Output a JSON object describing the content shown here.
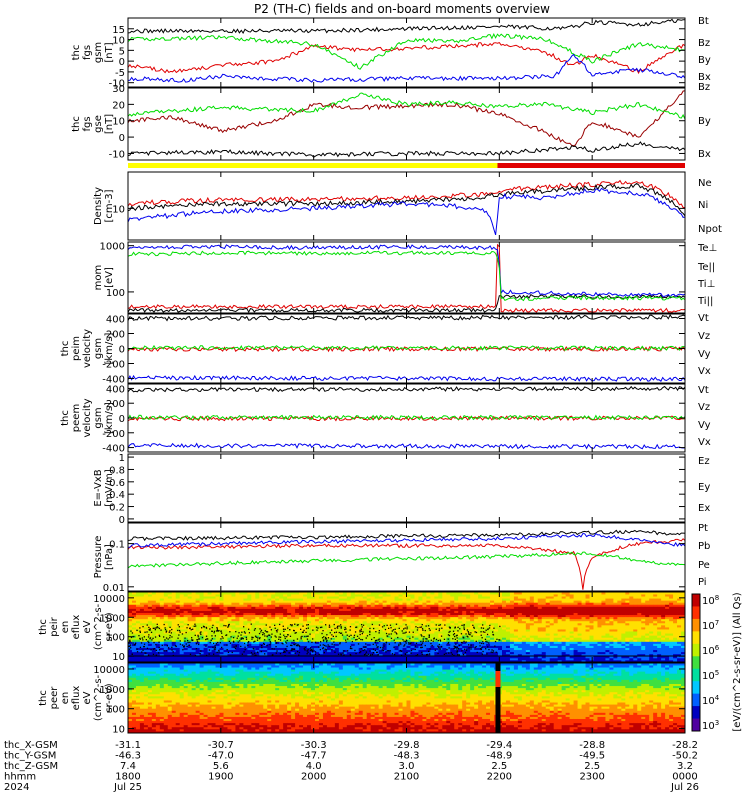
{
  "title": "P2 (TH-C) fields and on-board moments overview",
  "colors": {
    "black": "#000000",
    "red": "#e00000",
    "darkred": "#990000",
    "green": "#00dd00",
    "blue": "#0000ee",
    "yellow": "#ffff00"
  },
  "chart_data": [
    {
      "type": "line",
      "id": "fgs_gsm",
      "ylabel": [
        "thc",
        "fgs",
        "gsm",
        "[nT]"
      ],
      "ylim": [
        -12,
        20
      ],
      "yticks": [
        -10,
        -5,
        0,
        5,
        10,
        15
      ],
      "x_hours": [
        0,
        6
      ],
      "series": [
        {
          "name": "Bt",
          "color": "black",
          "points": [
            [
              0,
              14
            ],
            [
              1,
              14
            ],
            [
              2,
              14
            ],
            [
              3,
              15
            ],
            [
              4,
              16
            ],
            [
              4.7,
              15
            ],
            [
              5,
              18
            ],
            [
              5.5,
              17
            ],
            [
              6,
              19
            ]
          ]
        },
        {
          "name": "Bz",
          "color": "red",
          "points": [
            [
              0,
              -2
            ],
            [
              0.5,
              -5
            ],
            [
              1,
              -2
            ],
            [
              1.6,
              0
            ],
            [
              2,
              7
            ],
            [
              2.5,
              5
            ],
            [
              3,
              6
            ],
            [
              3.5,
              7
            ],
            [
              4,
              8
            ],
            [
              4.5,
              4
            ],
            [
              4.8,
              -2
            ],
            [
              5,
              3
            ],
            [
              5.5,
              -5
            ],
            [
              6,
              8
            ]
          ]
        },
        {
          "name": "By",
          "color": "green",
          "points": [
            [
              0,
              10
            ],
            [
              1,
              11
            ],
            [
              2,
              8
            ],
            [
              2.5,
              -3
            ],
            [
              3,
              10
            ],
            [
              3.5,
              9
            ],
            [
              4,
              12
            ],
            [
              4.5,
              10
            ],
            [
              5,
              0
            ],
            [
              5.5,
              8
            ],
            [
              6,
              5
            ]
          ]
        },
        {
          "name": "Bx",
          "color": "blue",
          "points": [
            [
              0,
              -8
            ],
            [
              0.6,
              -9
            ],
            [
              1,
              -7
            ],
            [
              1.5,
              -8
            ],
            [
              2,
              -9
            ],
            [
              3,
              -8
            ],
            [
              4,
              -8
            ],
            [
              4.6,
              -7
            ],
            [
              4.8,
              3
            ],
            [
              5,
              -6
            ],
            [
              5.5,
              -4
            ],
            [
              6,
              -7
            ]
          ]
        }
      ]
    },
    {
      "type": "line",
      "id": "fgs_gse",
      "ylabel": [
        "thc",
        "fgs",
        "gse",
        "[nT]"
      ],
      "ylim": [
        -14,
        30
      ],
      "yticks": [
        -10,
        0,
        10,
        20,
        30
      ],
      "x_hours": [
        0,
        6
      ],
      "series": [
        {
          "name": "Bz",
          "color": "darkred",
          "points": [
            [
              0,
              10
            ],
            [
              0.5,
              12
            ],
            [
              1,
              4
            ],
            [
              1.6,
              10
            ],
            [
              2,
              20
            ],
            [
              2.5,
              18
            ],
            [
              3,
              19
            ],
            [
              3.5,
              20
            ],
            [
              4,
              14
            ],
            [
              4.5,
              3
            ],
            [
              4.8,
              -6
            ],
            [
              5,
              10
            ],
            [
              5.5,
              0
            ],
            [
              6,
              28
            ]
          ]
        },
        {
          "name": "By",
          "color": "green",
          "points": [
            [
              0,
              14
            ],
            [
              1,
              18
            ],
            [
              2,
              16
            ],
            [
              2.5,
              26
            ],
            [
              3,
              20
            ],
            [
              3.5,
              21
            ],
            [
              4,
              19
            ],
            [
              4.5,
              20
            ],
            [
              5,
              15
            ],
            [
              5.5,
              20
            ],
            [
              6,
              12
            ]
          ]
        },
        {
          "name": "Bx",
          "color": "black",
          "points": [
            [
              0,
              -10
            ],
            [
              1,
              -9
            ],
            [
              2,
              -11
            ],
            [
              3,
              -10
            ],
            [
              4,
              -10
            ],
            [
              4.8,
              -6
            ],
            [
              5,
              -8
            ],
            [
              5.5,
              -4
            ],
            [
              6,
              -8
            ]
          ]
        }
      ]
    },
    {
      "type": "line",
      "id": "density",
      "ylabel": [
        "Density",
        "[cm-3]"
      ],
      "ylim_log": [
        3,
        40
      ],
      "yticks": [
        10
      ],
      "x_hours": [
        0,
        6
      ],
      "series": [
        {
          "name": "Ne",
          "color": "red",
          "points": [
            [
              0,
              12
            ],
            [
              1,
              14
            ],
            [
              2,
              14
            ],
            [
              3,
              15
            ],
            [
              3.8,
              17
            ],
            [
              4,
              20
            ],
            [
              5,
              25
            ],
            [
              5.5,
              28
            ],
            [
              6,
              10
            ]
          ]
        },
        {
          "name": "Ni",
          "color": "black",
          "points": [
            [
              0,
              10
            ],
            [
              1,
              12
            ],
            [
              2,
              12
            ],
            [
              3,
              13
            ],
            [
              3.8,
              15
            ],
            [
              4,
              17
            ],
            [
              5,
              22
            ],
            [
              5.5,
              24
            ],
            [
              6,
              8
            ]
          ]
        },
        {
          "name": "Npot",
          "color": "blue",
          "points": [
            [
              0,
              6.5
            ],
            [
              1,
              9
            ],
            [
              2,
              10
            ],
            [
              3,
              12
            ],
            [
              3.5,
              11
            ],
            [
              3.85,
              9
            ],
            [
              3.97,
              3.2
            ],
            [
              4,
              16
            ],
            [
              4.5,
              15
            ],
            [
              5,
              20
            ],
            [
              5.5,
              18
            ],
            [
              6,
              7
            ]
          ]
        }
      ]
    },
    {
      "type": "line",
      "id": "temperature",
      "ylabel": [
        "mom",
        "[eV]"
      ],
      "ylim_log": [
        35,
        1200
      ],
      "yticks": [
        100,
        1000
      ],
      "x_hours": [
        0,
        6
      ],
      "series": [
        {
          "name": "Te⊥",
          "color": "red",
          "points": [
            [
              0,
              48
            ],
            [
              3.97,
              48
            ],
            [
              3.98,
              1000
            ],
            [
              4.01,
              1000
            ],
            [
              4.02,
              40
            ],
            [
              6,
              40
            ]
          ]
        },
        {
          "name": "Te||",
          "color": "black",
          "points": [
            [
              0,
              40
            ],
            [
              3.97,
              40
            ],
            [
              4.0,
              80
            ],
            [
              6,
              80
            ]
          ]
        },
        {
          "name": "Ti⊥",
          "color": "blue",
          "points": [
            [
              0,
              900
            ],
            [
              1,
              950
            ],
            [
              2,
              900
            ],
            [
              3,
              950
            ],
            [
              3.97,
              900
            ],
            [
              4.02,
              100
            ],
            [
              5,
              90
            ],
            [
              6,
              85
            ]
          ]
        },
        {
          "name": "Ti||",
          "color": "green",
          "points": [
            [
              0,
              650
            ],
            [
              1,
              700
            ],
            [
              2,
              680
            ],
            [
              3,
              700
            ],
            [
              3.97,
              700
            ],
            [
              4.02,
              70
            ],
            [
              5,
              75
            ],
            [
              6,
              72
            ]
          ]
        }
      ]
    },
    {
      "type": "line",
      "id": "peim_velocity",
      "ylabel": [
        "thc",
        "peim",
        "velocity",
        "gsm",
        "[km/s]"
      ],
      "ylim": [
        -460,
        460
      ],
      "yticks": [
        -400,
        -200,
        0,
        200,
        400
      ],
      "x_hours": [
        0,
        6
      ],
      "series": [
        {
          "name": "Vt",
          "color": "black",
          "points": [
            [
              0,
              400
            ],
            [
              6,
              420
            ]
          ]
        },
        {
          "name": "Vz",
          "color": "red",
          "points": [
            [
              0,
              -10
            ],
            [
              6,
              -5
            ]
          ]
        },
        {
          "name": "Vy",
          "color": "green",
          "points": [
            [
              0,
              10
            ],
            [
              6,
              5
            ]
          ]
        },
        {
          "name": "Vx",
          "color": "blue",
          "points": [
            [
              0,
              -390
            ],
            [
              6,
              -410
            ]
          ]
        }
      ]
    },
    {
      "type": "line",
      "id": "peem_velocity",
      "ylabel": [
        "thc",
        "peem",
        "velocity",
        "gsm",
        "[km/s]"
      ],
      "ylim": [
        -460,
        460
      ],
      "yticks": [
        -400,
        -200,
        0,
        200,
        400
      ],
      "x_hours": [
        0,
        6
      ],
      "series": [
        {
          "name": "Vt",
          "color": "black",
          "points": [
            [
              0,
              380
            ],
            [
              6,
              400
            ]
          ]
        },
        {
          "name": "Vz",
          "color": "red",
          "points": [
            [
              0,
              -10
            ],
            [
              6,
              0
            ]
          ]
        },
        {
          "name": "Vy",
          "color": "green",
          "points": [
            [
              0,
              10
            ],
            [
              6,
              5
            ]
          ]
        },
        {
          "name": "Vx",
          "color": "blue",
          "points": [
            [
              0,
              -370
            ],
            [
              6,
              -390
            ]
          ]
        }
      ]
    },
    {
      "type": "line",
      "id": "efield",
      "ylabel": [
        "E=-VxB",
        "[mV/m]"
      ],
      "ylim": [
        -0.05,
        1.05
      ],
      "yticks": [
        0.0,
        0.2,
        0.4,
        0.6,
        0.8,
        1.0
      ],
      "x_hours": [
        0,
        6
      ],
      "series": [
        {
          "name": "Ez",
          "color": "red",
          "points": []
        },
        {
          "name": "Ey",
          "color": "green",
          "points": []
        },
        {
          "name": "Ex",
          "color": "blue",
          "points": []
        }
      ]
    },
    {
      "type": "line",
      "id": "pressure",
      "ylabel": [
        "Pressure",
        "[nPa]"
      ],
      "ylim_log": [
        0.008,
        0.3
      ],
      "yticks": [
        0.01,
        0.1
      ],
      "x_hours": [
        0,
        6
      ],
      "series": [
        {
          "name": "Pt",
          "color": "black",
          "points": [
            [
              0,
              0.13
            ],
            [
              2,
              0.14
            ],
            [
              4,
              0.16
            ],
            [
              5,
              0.18
            ],
            [
              5.5,
              0.19
            ],
            [
              6,
              0.16
            ]
          ]
        },
        {
          "name": "Pb",
          "color": "red",
          "points": [
            [
              0,
              0.08
            ],
            [
              2,
              0.09
            ],
            [
              4,
              0.09
            ],
            [
              4.8,
              0.06
            ],
            [
              4.9,
              0.008
            ],
            [
              5.0,
              0.05
            ],
            [
              5.5,
              0.1
            ],
            [
              6,
              0.12
            ]
          ]
        },
        {
          "name": "Pe",
          "color": "green",
          "points": [
            [
              0,
              0.03
            ],
            [
              2,
              0.04
            ],
            [
              4,
              0.05
            ],
            [
              5,
              0.06
            ],
            [
              5.5,
              0.04
            ],
            [
              6,
              0.03
            ]
          ]
        },
        {
          "name": "Pi",
          "color": "blue",
          "points": [
            [
              0,
              0.09
            ],
            [
              2,
              0.11
            ],
            [
              4,
              0.13
            ],
            [
              5,
              0.16
            ],
            [
              5.5,
              0.12
            ],
            [
              6,
              0.09
            ]
          ]
        }
      ]
    },
    {
      "type": "heatmap",
      "id": "peir_spec",
      "ylabel": [
        "thc",
        "peir",
        "en",
        "eflux",
        "eV",
        "(cm^2-s-",
        "sr-eV)"
      ],
      "ylim_log": [
        5,
        20000
      ],
      "yticks": [
        10,
        100,
        1000,
        10000
      ]
    },
    {
      "type": "heatmap",
      "id": "peer_spec",
      "ylabel": [
        "thc",
        "peer",
        "en",
        "eflux",
        "eV",
        "(cm^2-s-",
        "sr-eV)"
      ],
      "ylim_log": [
        6,
        20000
      ],
      "yticks": [
        10,
        100,
        1000,
        10000
      ]
    }
  ],
  "colorbar": {
    "ticks": [
      "10^3",
      "10^4",
      "10^5",
      "10^6",
      "10^7",
      "10^8"
    ],
    "label": "[eV/(cm^2-s-sr-eV)] (All Qs)"
  },
  "axis_table": {
    "rows": [
      {
        "label": "thc_X-GSM",
        "values": [
          "-31.1",
          "-30.7",
          "-30.3",
          "-29.8",
          "-29.4",
          "-28.8",
          "-28.2"
        ]
      },
      {
        "label": "thc_Y-GSM",
        "values": [
          "-46.3",
          "-47.0",
          "-47.7",
          "-48.3",
          "-48.9",
          "-49.5",
          "-50.2"
        ]
      },
      {
        "label": "thc_Z-GSM",
        "values": [
          "7.4",
          "5.6",
          "4.0",
          "3.0",
          "2.5",
          "2.5",
          "3.2"
        ]
      },
      {
        "label": "hhmm",
        "values": [
          "1800",
          "1900",
          "2000",
          "2100",
          "2200",
          "2300",
          "0000"
        ]
      },
      {
        "label": "2024",
        "values": [
          "Jul 25",
          "",
          "",
          "",
          "",
          "",
          "Jul 26"
        ]
      }
    ]
  }
}
